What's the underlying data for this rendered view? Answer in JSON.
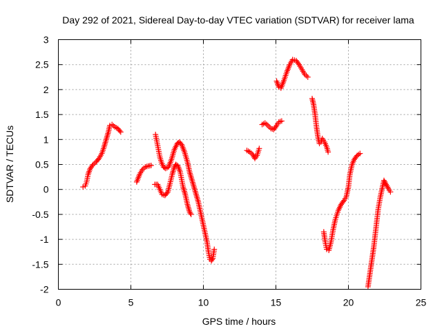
{
  "chart_data": {
    "type": "scatter",
    "title": "Day 292 of 2021, Sidereal Day-to-day VTEC variation (SDTVAR) for receiver lama",
    "xlabel": "GPS time / hours",
    "ylabel": "SDTVAR / TECUs",
    "xlim": [
      0,
      25
    ],
    "ylim": [
      -2,
      3
    ],
    "xticks": [
      0,
      5,
      10,
      15,
      20,
      25
    ],
    "yticks": [
      -2,
      -1.5,
      -1,
      -0.5,
      0,
      0.5,
      1,
      1.5,
      2,
      2.5,
      3
    ],
    "grid": true,
    "marker": "plus",
    "color": "#ff0000",
    "series": [
      {
        "segments": [
          [
            [
              1.7,
              0.05
            ],
            [
              1.85,
              0.07
            ],
            [
              1.95,
              0.15
            ],
            [
              2.05,
              0.3
            ],
            [
              2.2,
              0.42
            ],
            [
              2.4,
              0.5
            ],
            [
              2.6,
              0.55
            ],
            [
              2.8,
              0.62
            ],
            [
              3.0,
              0.72
            ],
            [
              3.15,
              0.85
            ],
            [
              3.3,
              1.0
            ],
            [
              3.45,
              1.15
            ],
            [
              3.55,
              1.28
            ],
            [
              3.7,
              1.3
            ],
            [
              3.9,
              1.25
            ],
            [
              4.1,
              1.22
            ],
            [
              4.3,
              1.15
            ]
          ],
          [
            [
              5.4,
              0.15
            ],
            [
              5.6,
              0.3
            ],
            [
              5.8,
              0.4
            ],
            [
              6.0,
              0.45
            ],
            [
              6.2,
              0.47
            ],
            [
              6.4,
              0.48
            ]
          ],
          [
            [
              6.7,
              1.1
            ],
            [
              6.8,
              0.95
            ],
            [
              6.9,
              0.8
            ],
            [
              7.0,
              0.65
            ],
            [
              7.1,
              0.55
            ],
            [
              7.25,
              0.45
            ],
            [
              7.4,
              0.42
            ],
            [
              7.6,
              0.45
            ],
            [
              7.8,
              0.6
            ],
            [
              8.0,
              0.8
            ],
            [
              8.2,
              0.92
            ],
            [
              8.35,
              0.95
            ],
            [
              8.5,
              0.9
            ],
            [
              8.7,
              0.75
            ],
            [
              8.9,
              0.55
            ],
            [
              9.05,
              0.35
            ],
            [
              9.2,
              0.2
            ],
            [
              9.35,
              0.05
            ],
            [
              9.5,
              -0.1
            ],
            [
              9.65,
              -0.25
            ],
            [
              9.8,
              -0.45
            ],
            [
              9.95,
              -0.65
            ],
            [
              10.1,
              -0.85
            ],
            [
              10.25,
              -1.05
            ],
            [
              10.35,
              -1.25
            ],
            [
              10.45,
              -1.4
            ],
            [
              10.55,
              -1.43
            ],
            [
              10.65,
              -1.38
            ],
            [
              10.75,
              -1.2
            ]
          ],
          [
            [
              6.65,
              0.1
            ],
            [
              6.85,
              0.1
            ],
            [
              7.0,
              0.0
            ],
            [
              7.15,
              -0.1
            ],
            [
              7.35,
              -0.12
            ],
            [
              7.55,
              -0.05
            ],
            [
              7.7,
              0.12
            ],
            [
              7.85,
              0.3
            ],
            [
              8.0,
              0.45
            ],
            [
              8.1,
              0.5
            ],
            [
              8.25,
              0.47
            ],
            [
              8.4,
              0.35
            ],
            [
              8.5,
              0.2
            ],
            [
              8.6,
              0.05
            ],
            [
              8.75,
              -0.1
            ],
            [
              8.9,
              -0.3
            ],
            [
              9.05,
              -0.45
            ],
            [
              9.15,
              -0.5
            ]
          ],
          [
            [
              13.0,
              0.78
            ],
            [
              13.2,
              0.75
            ],
            [
              13.4,
              0.7
            ],
            [
              13.55,
              0.62
            ],
            [
              13.7,
              0.68
            ],
            [
              13.85,
              0.82
            ]
          ],
          [
            [
              14.05,
              1.3
            ],
            [
              14.25,
              1.33
            ],
            [
              14.45,
              1.28
            ],
            [
              14.65,
              1.22
            ],
            [
              14.85,
              1.2
            ],
            [
              15.05,
              1.28
            ],
            [
              15.2,
              1.35
            ],
            [
              15.4,
              1.37
            ]
          ],
          [
            [
              15.05,
              2.17
            ],
            [
              15.2,
              2.05
            ],
            [
              15.35,
              2.03
            ],
            [
              15.55,
              2.18
            ],
            [
              15.75,
              2.35
            ],
            [
              15.95,
              2.5
            ],
            [
              16.15,
              2.6
            ],
            [
              16.4,
              2.58
            ],
            [
              16.6,
              2.5
            ],
            [
              16.8,
              2.4
            ],
            [
              17.0,
              2.3
            ],
            [
              17.2,
              2.25
            ]
          ],
          [
            [
              17.5,
              1.82
            ],
            [
              17.6,
              1.7
            ],
            [
              17.7,
              1.5
            ],
            [
              17.8,
              1.25
            ],
            [
              17.9,
              1.05
            ],
            [
              18.0,
              0.92
            ],
            [
              18.1,
              0.95
            ],
            [
              18.2,
              1.02
            ],
            [
              18.35,
              0.95
            ],
            [
              18.5,
              0.85
            ],
            [
              18.6,
              0.75
            ]
          ],
          [
            [
              18.3,
              -0.85
            ],
            [
              18.4,
              -1.05
            ],
            [
              18.5,
              -1.2
            ],
            [
              18.65,
              -1.22
            ],
            [
              18.8,
              -1.05
            ],
            [
              18.95,
              -0.8
            ],
            [
              19.1,
              -0.6
            ],
            [
              19.3,
              -0.42
            ],
            [
              19.5,
              -0.3
            ],
            [
              19.7,
              -0.22
            ],
            [
              19.85,
              -0.15
            ],
            [
              20.0,
              0.05
            ],
            [
              20.1,
              0.3
            ],
            [
              20.25,
              0.5
            ],
            [
              20.4,
              0.6
            ],
            [
              20.6,
              0.68
            ],
            [
              20.8,
              0.72
            ]
          ],
          [
            [
              21.35,
              -1.95
            ],
            [
              21.45,
              -1.75
            ],
            [
              21.55,
              -1.55
            ],
            [
              21.65,
              -1.35
            ],
            [
              21.75,
              -1.15
            ],
            [
              21.85,
              -0.9
            ],
            [
              21.95,
              -0.65
            ],
            [
              22.05,
              -0.4
            ],
            [
              22.2,
              -0.15
            ],
            [
              22.35,
              0.05
            ],
            [
              22.45,
              0.18
            ],
            [
              22.6,
              0.1
            ],
            [
              22.75,
              0.02
            ],
            [
              22.9,
              -0.05
            ]
          ]
        ]
      }
    ]
  }
}
